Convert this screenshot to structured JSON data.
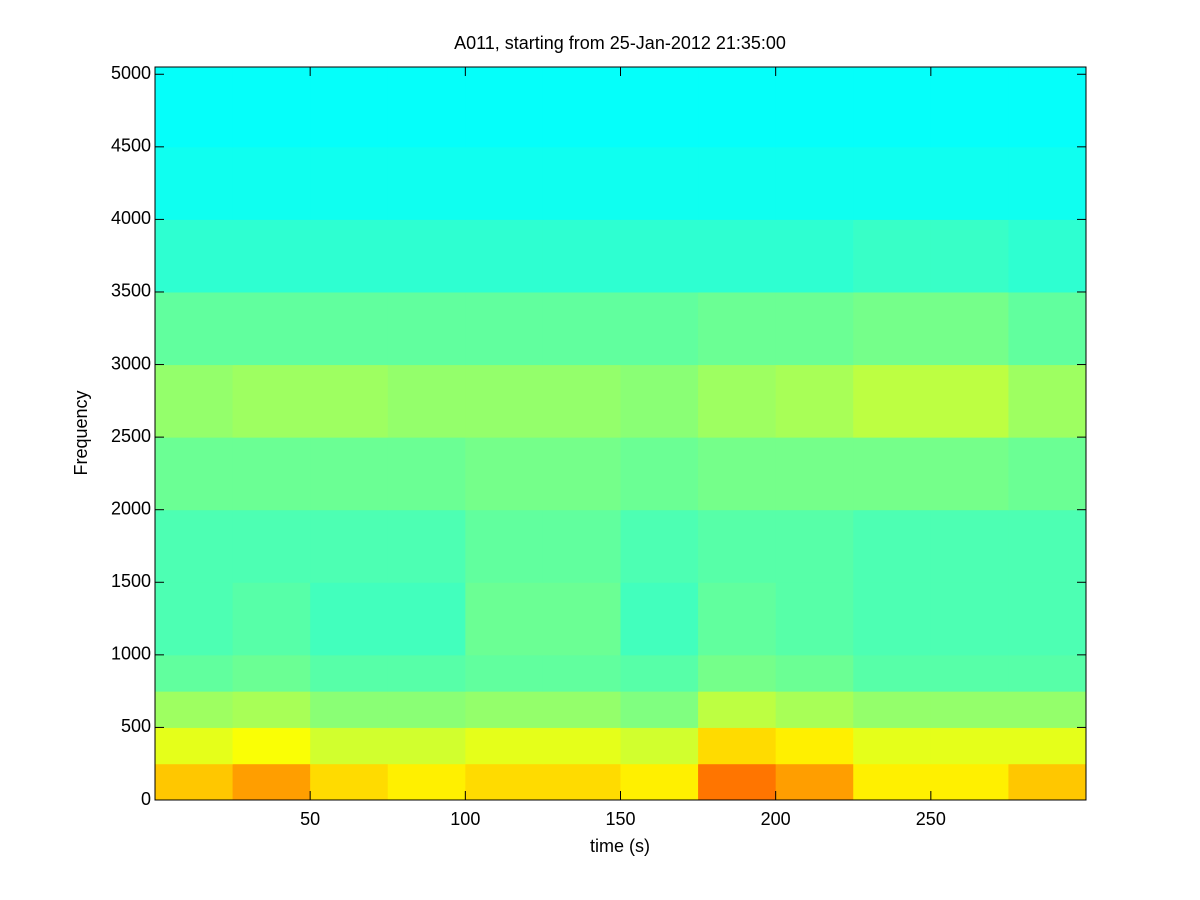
{
  "chart_data": {
    "type": "heatmap",
    "title": "A011, starting from 25-Jan-2012 21:35:00",
    "x_label": "time (s)",
    "y_label": "Frequency",
    "colormap": "jet",
    "zlim": [
      0,
      1
    ],
    "x_edges": [
      0,
      25,
      50,
      75,
      100,
      125,
      150,
      175,
      200,
      225,
      250,
      275,
      300
    ],
    "y_edges": [
      0,
      250,
      500,
      750,
      1000,
      1500,
      2000,
      2500,
      3000,
      3500,
      4000,
      4500,
      5050
    ],
    "z": [
      [
        0.68,
        0.72,
        0.66,
        0.64,
        0.66,
        0.66,
        0.64,
        0.76,
        0.72,
        0.64,
        0.64,
        0.68
      ],
      [
        0.6,
        0.62,
        0.58,
        0.58,
        0.6,
        0.6,
        0.58,
        0.66,
        0.64,
        0.6,
        0.6,
        0.6
      ],
      [
        0.53,
        0.54,
        0.51,
        0.51,
        0.52,
        0.52,
        0.5,
        0.56,
        0.54,
        0.52,
        0.52,
        0.52
      ],
      [
        0.47,
        0.48,
        0.46,
        0.46,
        0.47,
        0.47,
        0.46,
        0.49,
        0.48,
        0.46,
        0.46,
        0.46
      ],
      [
        0.45,
        0.46,
        0.44,
        0.44,
        0.48,
        0.48,
        0.44,
        0.47,
        0.46,
        0.45,
        0.45,
        0.45
      ],
      [
        0.45,
        0.45,
        0.45,
        0.45,
        0.47,
        0.47,
        0.45,
        0.46,
        0.46,
        0.45,
        0.45,
        0.45
      ],
      [
        0.48,
        0.48,
        0.48,
        0.48,
        0.49,
        0.49,
        0.48,
        0.49,
        0.49,
        0.49,
        0.49,
        0.48
      ],
      [
        0.52,
        0.53,
        0.53,
        0.52,
        0.52,
        0.52,
        0.51,
        0.53,
        0.54,
        0.56,
        0.56,
        0.53
      ],
      [
        0.47,
        0.47,
        0.47,
        0.47,
        0.47,
        0.47,
        0.47,
        0.48,
        0.48,
        0.49,
        0.49,
        0.47
      ],
      [
        0.42,
        0.42,
        0.42,
        0.42,
        0.42,
        0.42,
        0.42,
        0.42,
        0.42,
        0.43,
        0.43,
        0.42
      ],
      [
        0.39,
        0.39,
        0.39,
        0.39,
        0.39,
        0.39,
        0.39,
        0.39,
        0.39,
        0.39,
        0.39,
        0.39
      ],
      [
        0.38,
        0.38,
        0.38,
        0.38,
        0.38,
        0.38,
        0.38,
        0.38,
        0.38,
        0.38,
        0.38,
        0.38
      ]
    ],
    "xlim": [
      0,
      300
    ],
    "ylim": [
      0,
      5050
    ],
    "xticks": [
      50,
      100,
      150,
      200,
      250
    ],
    "yticks": [
      0,
      500,
      1000,
      1500,
      2000,
      2500,
      3000,
      3500,
      4000,
      4500,
      5000
    ]
  }
}
